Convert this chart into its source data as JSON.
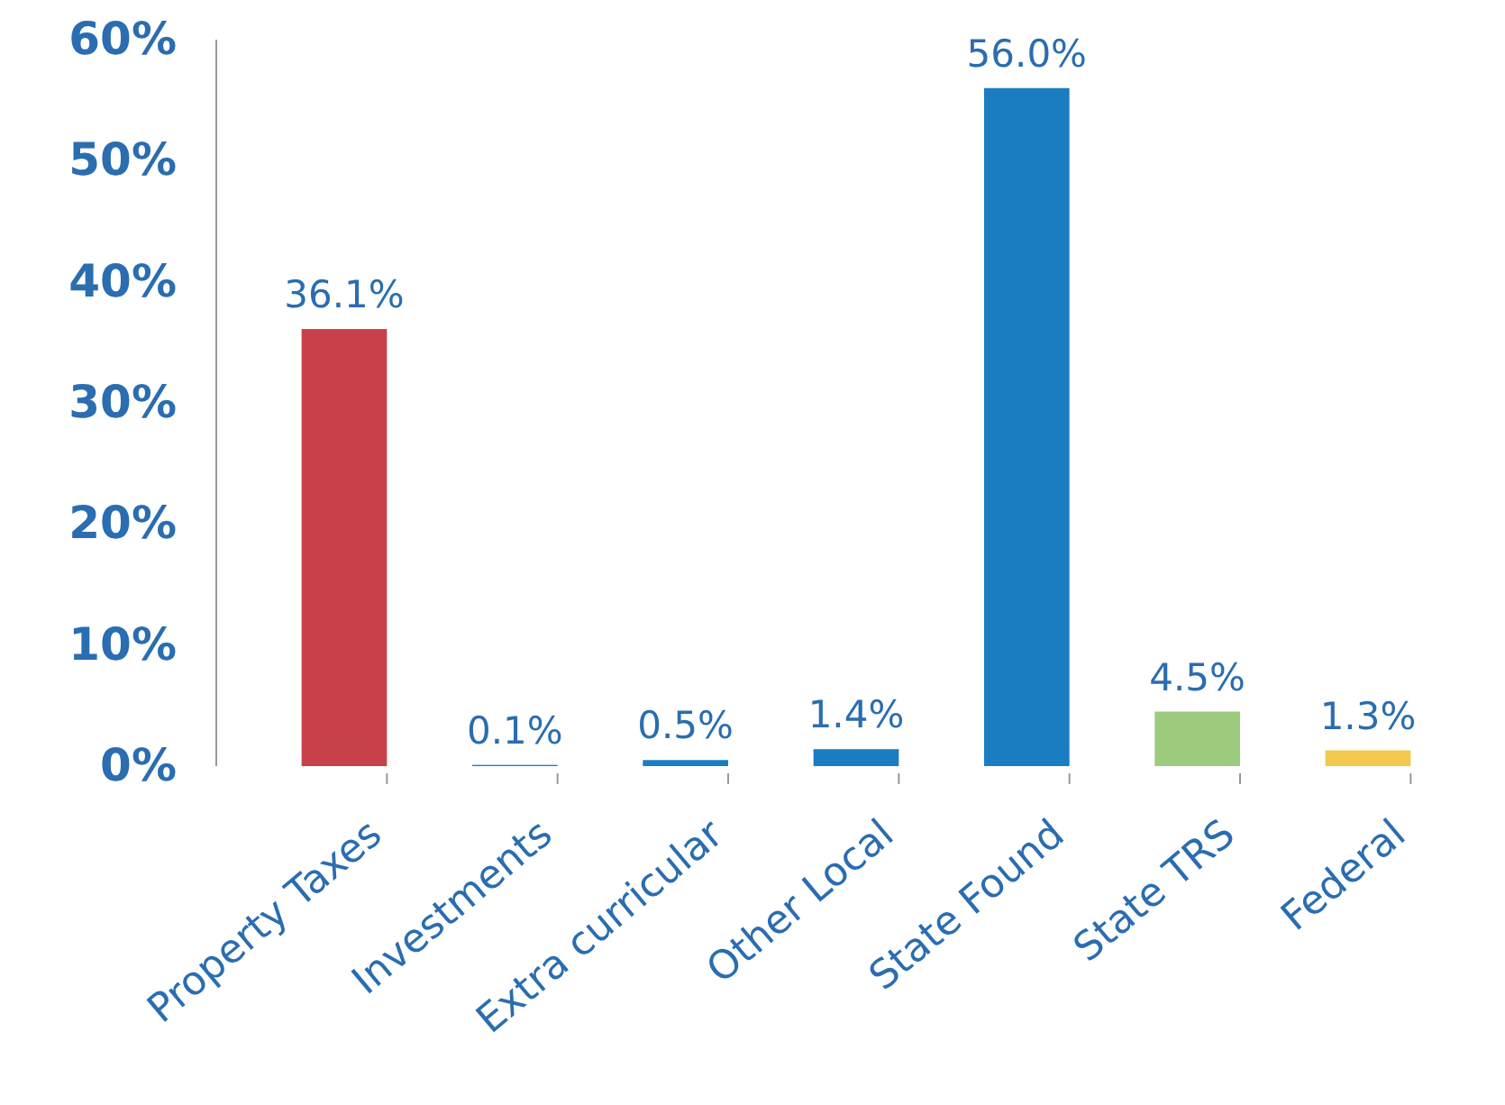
{
  "chart_data": {
    "type": "bar",
    "categories": [
      "Property Taxes",
      "Investments",
      "Extra curricular",
      "Other Local",
      "State Found",
      "State TRS",
      "Federal"
    ],
    "values": [
      36.1,
      0.1,
      0.5,
      1.4,
      56.0,
      4.5,
      1.3
    ],
    "colors": [
      "#c8404a",
      "#1a7cc1",
      "#1a7cc1",
      "#1a7cc1",
      "#1a7cc1",
      "#9ccb7e",
      "#f2c94c"
    ],
    "value_labels": [
      "36.1%",
      "0.1%",
      "0.5%",
      "1.4%",
      "56.0%",
      "4.5%",
      "1.3%"
    ],
    "ylim": [
      0,
      60
    ],
    "yticks": [
      {
        "value": 0,
        "label": "0%"
      },
      {
        "value": 10,
        "label": "10%"
      },
      {
        "value": 20,
        "label": "20%"
      },
      {
        "value": 30,
        "label": "30%"
      },
      {
        "value": 40,
        "label": "40%"
      },
      {
        "value": 50,
        "label": "50%"
      },
      {
        "value": 60,
        "label": "60%"
      }
    ],
    "grid": false
  }
}
